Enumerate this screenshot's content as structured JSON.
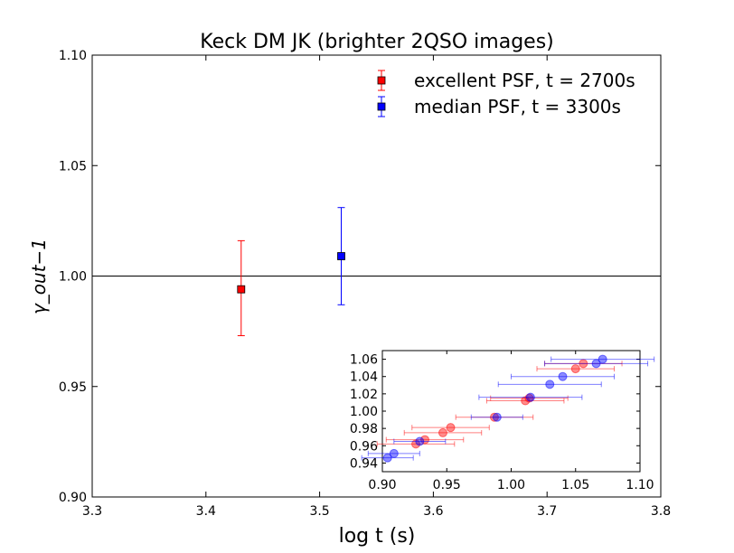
{
  "chart_data": [
    {
      "type": "scatter",
      "title": "Keck DM JK (brighter 2QSO images)",
      "xlabel": "log t (s)",
      "ylabel": "γ_out−1",
      "xlim": [
        3.3,
        3.8
      ],
      "ylim": [
        0.9,
        1.1
      ],
      "x_ticks": [
        "3.3",
        "3.4",
        "3.5",
        "3.6",
        "3.7",
        "3.8"
      ],
      "y_ticks": [
        "0.90",
        "0.95",
        "1.00",
        "1.05",
        "1.10"
      ],
      "reference_line_y": 1.0,
      "legend_position": "top-right",
      "series": [
        {
          "name": "excellent PSF, t = 2700s",
          "color": "#ff0000",
          "points": [
            {
              "x": 3.431,
              "y": 0.994,
              "yerr_low": 0.973,
              "yerr_high": 1.016
            }
          ]
        },
        {
          "name": "median PSF, t = 3300s",
          "color": "#0000ff",
          "points": [
            {
              "x": 3.519,
              "y": 1.009,
              "yerr_low": 0.987,
              "yerr_high": 1.031
            }
          ]
        }
      ]
    },
    {
      "type": "scatter",
      "title": "",
      "xlabel": "",
      "ylabel": "",
      "xlim": [
        0.9,
        1.1
      ],
      "ylim": [
        0.93,
        1.07
      ],
      "x_ticks": [
        "0.90",
        "0.95",
        "1.00",
        "1.05",
        "1.10"
      ],
      "y_ticks": [
        "0.94",
        "0.96",
        "0.98",
        "1.00",
        "1.02",
        "1.04",
        "1.06"
      ],
      "series": [
        {
          "color": "#ff0000",
          "points": [
            {
              "x": 0.926,
              "y": 0.962,
              "xerr": 0.03
            },
            {
              "x": 0.933,
              "y": 0.967,
              "xerr": 0.03
            },
            {
              "x": 0.947,
              "y": 0.975,
              "xerr": 0.03
            },
            {
              "x": 0.953,
              "y": 0.981,
              "xerr": 0.03
            },
            {
              "x": 0.987,
              "y": 0.993,
              "xerr": 0.03
            },
            {
              "x": 1.011,
              "y": 1.012,
              "xerr": 0.03
            },
            {
              "x": 1.014,
              "y": 1.015,
              "xerr": 0.03
            },
            {
              "x": 1.05,
              "y": 1.049,
              "xerr": 0.03
            },
            {
              "x": 1.056,
              "y": 1.055,
              "xerr": 0.03
            }
          ]
        },
        {
          "color": "#0000ff",
          "points": [
            {
              "x": 0.904,
              "y": 0.946,
              "xerr": 0.02
            },
            {
              "x": 0.909,
              "y": 0.951,
              "xerr": 0.02
            },
            {
              "x": 0.929,
              "y": 0.965,
              "xerr": 0.02
            },
            {
              "x": 0.989,
              "y": 0.993,
              "xerr": 0.02
            },
            {
              "x": 1.015,
              "y": 1.016,
              "xerr": 0.04
            },
            {
              "x": 1.04,
              "y": 1.04,
              "xerr": 0.04
            },
            {
              "x": 1.066,
              "y": 1.055,
              "xerr": 0.04
            },
            {
              "x": 1.071,
              "y": 1.06,
              "xerr": 0.04
            },
            {
              "x": 1.03,
              "y": 1.031,
              "xerr": 0.04
            }
          ]
        }
      ]
    }
  ]
}
